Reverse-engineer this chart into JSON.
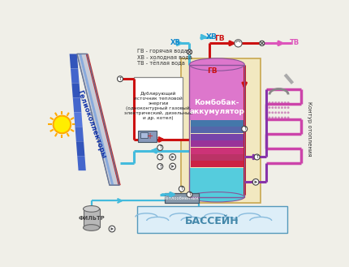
{
  "bg_color": "#f0efe8",
  "legend_lines": [
    "ГВ - горячая вода",
    "ХВ - холодная вода",
    "ТВ - тёплая вода"
  ],
  "label_gv": "ГВ",
  "label_xv": "ХВ",
  "label_tv": "ТВ",
  "label_gelio": "Гелиоколлекторы",
  "label_kombobak": "Комбобак-\nаккумулятор",
  "label_dubliruuschiy": "Дублирующий\nисточник тепловой\nэнергии\n(одноконтурный газовый,\nэлектрический, дизельный\nи др. котел)",
  "label_kontur": "Контур отопления",
  "label_teploobmen": "Теплообменник",
  "label_filtr": "ФИЛЬТР",
  "label_bassein": "БАССЕЙН",
  "colors": {
    "red": "#cc1111",
    "blue_cold": "#44bbdd",
    "purple": "#8833aa",
    "pink": "#dd55bb",
    "gray_pipe": "#aaaaaa",
    "tank_outer_bg": "#f0e8c8",
    "tank_top_pink": "#dd77cc",
    "tank_mid_red": "#cc2266",
    "tank_coil1": "#cc3377",
    "tank_coil2": "#993399",
    "tank_coil3": "#7744aa",
    "tank_coil4": "#5566aa",
    "tank_coil5": "#4477aa",
    "tank_cyan": "#55ccdd",
    "panel_blue": "#3366cc",
    "panel_gray": "#99aacc",
    "sun_yellow": "#ffee00",
    "sun_orange": "#ffaa00"
  }
}
